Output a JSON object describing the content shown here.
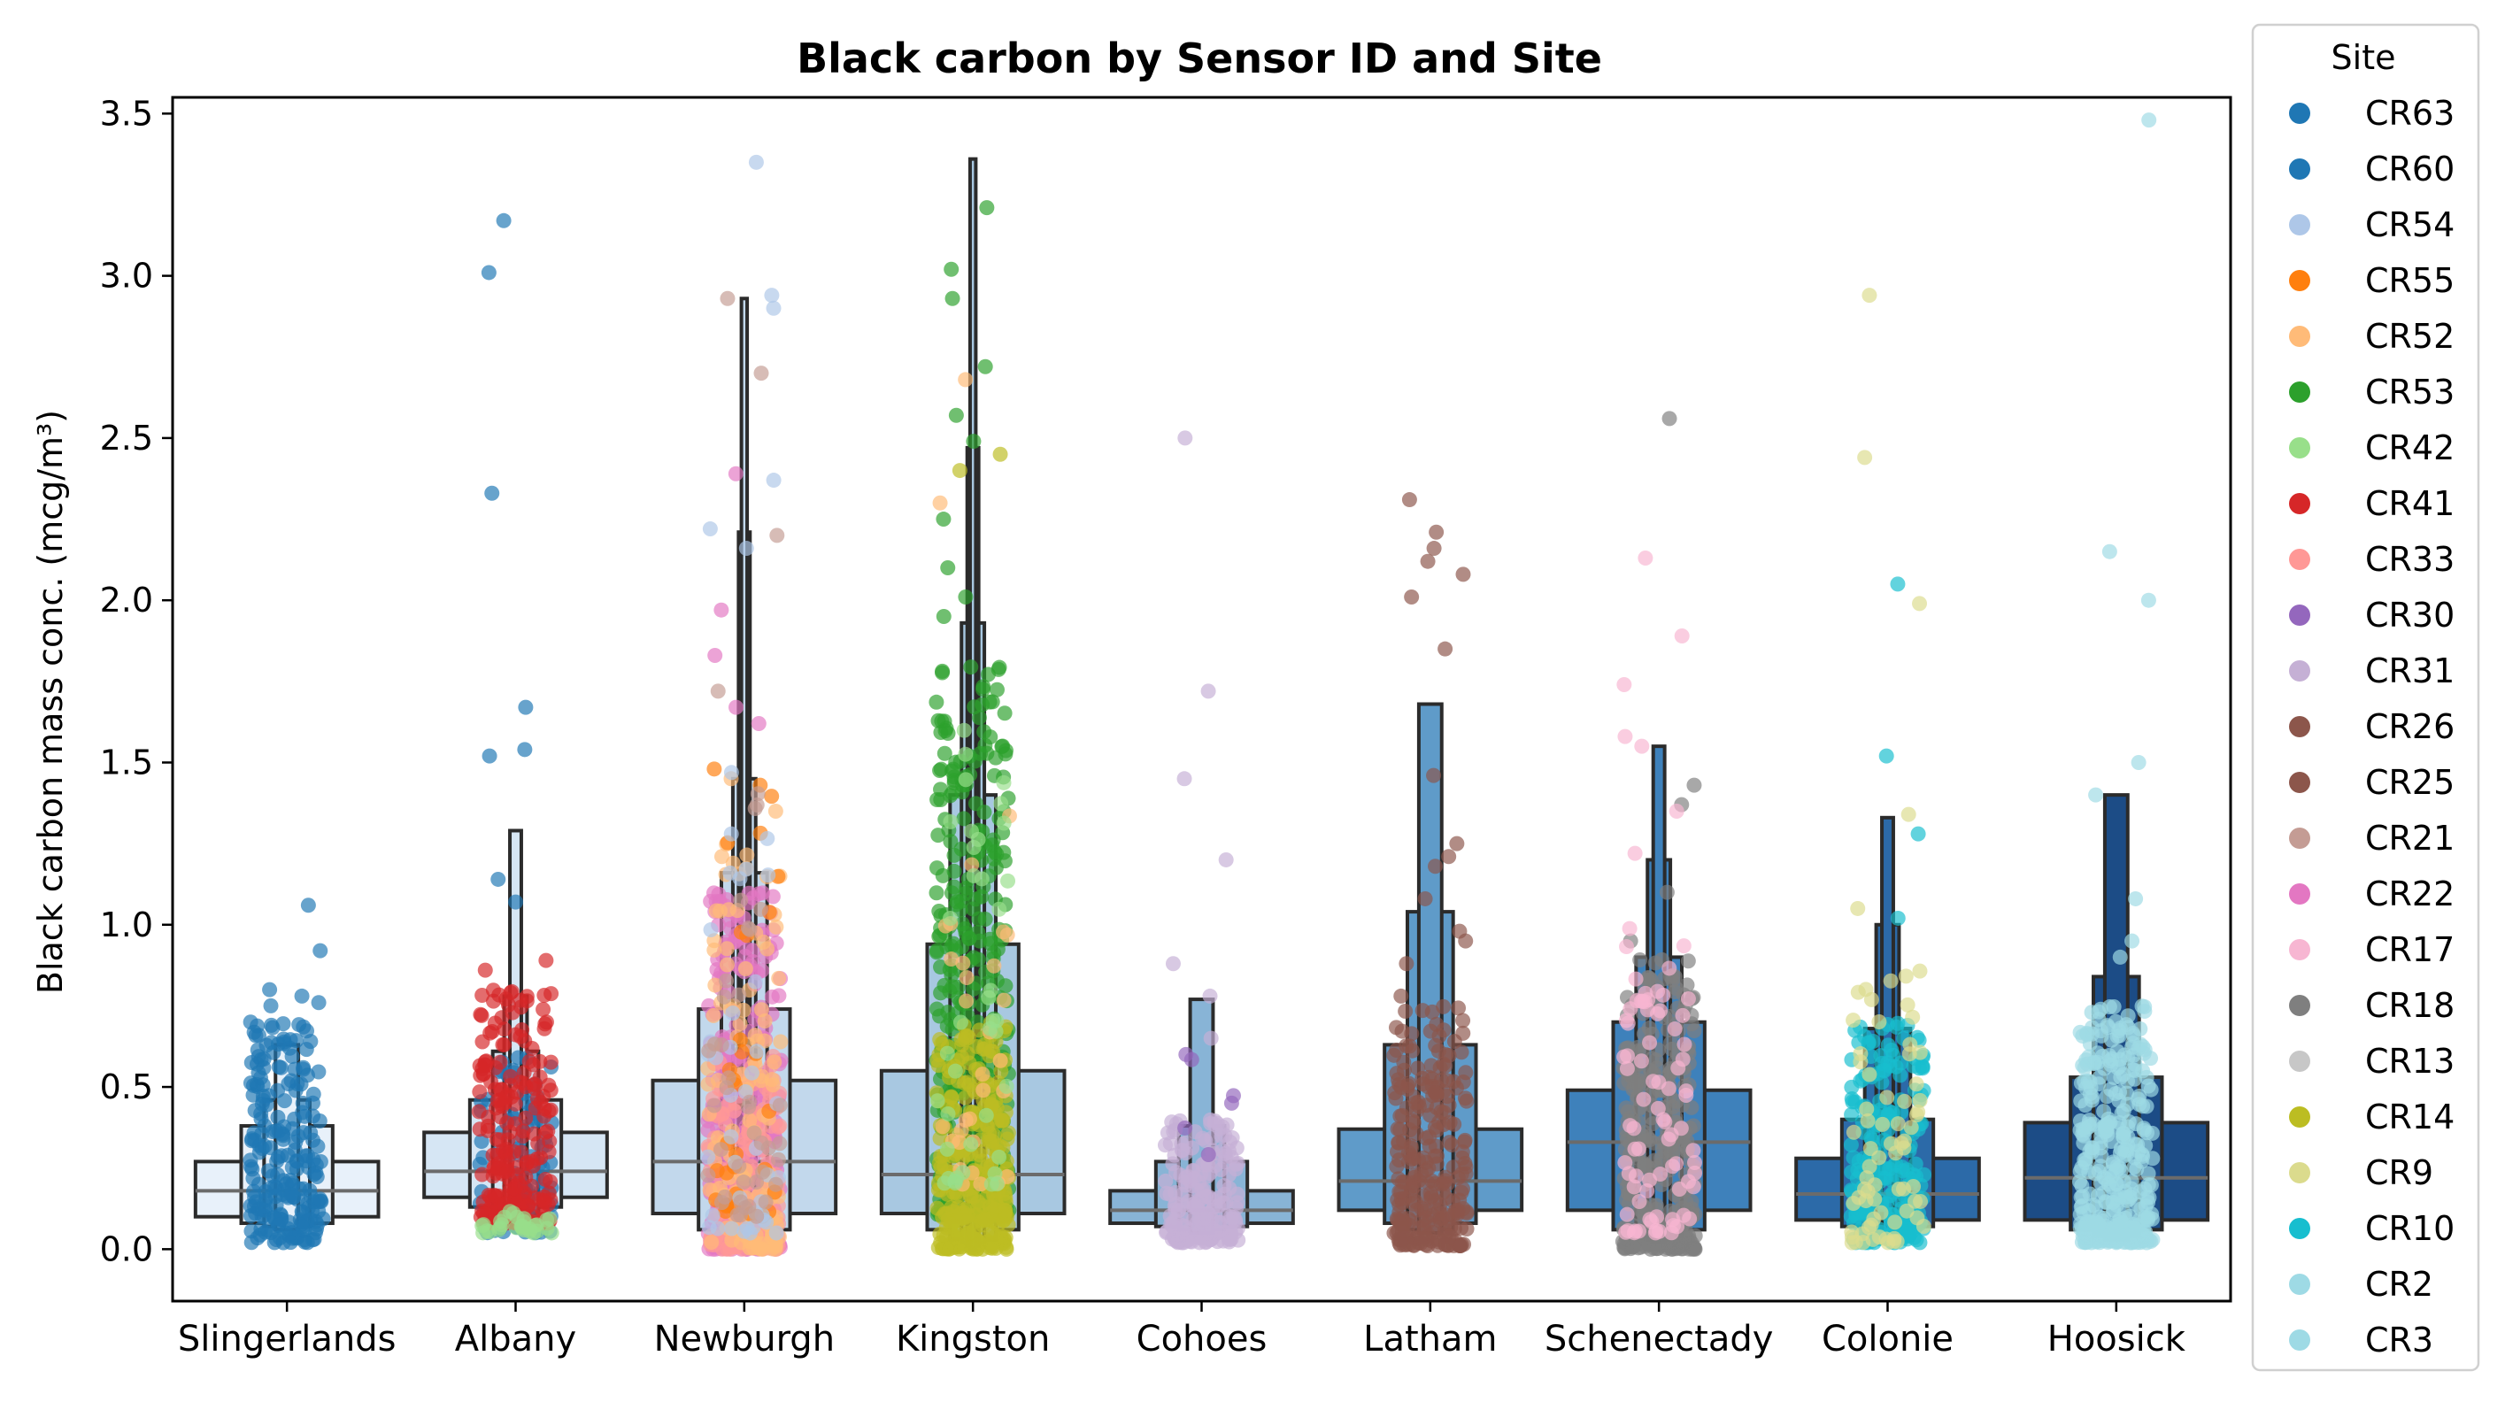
{
  "chart_data": {
    "type": "boxen-strip",
    "title": "Black carbon by Sensor ID and Site",
    "xlabel": "",
    "ylabel": "Black carbon mass conc. (mcg/m³)",
    "ylim": [
      -0.16,
      3.55
    ],
    "yticks": [
      "0.0",
      "0.5",
      "1.0",
      "1.5",
      "2.0",
      "2.5",
      "3.0",
      "3.5"
    ],
    "ytick_values": [
      0,
      0.5,
      1.0,
      1.5,
      2.0,
      2.5,
      3.0,
      3.5
    ],
    "grid": false,
    "legend": {
      "title": "Site",
      "placement": "outside-right",
      "entries": [
        {
          "label": "CR63",
          "color": "#1f77b4"
        },
        {
          "label": "CR60",
          "color": "#1f77b4"
        },
        {
          "label": "CR54",
          "color": "#aec7e8"
        },
        {
          "label": "CR55",
          "color": "#ff7f0e"
        },
        {
          "label": "CR52",
          "color": "#ffbb78"
        },
        {
          "label": "CR53",
          "color": "#2ca02c"
        },
        {
          "label": "CR42",
          "color": "#98df8a"
        },
        {
          "label": "CR41",
          "color": "#d62728"
        },
        {
          "label": "CR33",
          "color": "#ff9896"
        },
        {
          "label": "CR30",
          "color": "#9467bd"
        },
        {
          "label": "CR31",
          "color": "#c5b0d5"
        },
        {
          "label": "CR26",
          "color": "#8c564b"
        },
        {
          "label": "CR25",
          "color": "#8c564b"
        },
        {
          "label": "CR21",
          "color": "#c49c94"
        },
        {
          "label": "CR22",
          "color": "#e377c2"
        },
        {
          "label": "CR17",
          "color": "#f7b6d2"
        },
        {
          "label": "CR18",
          "color": "#7f7f7f"
        },
        {
          "label": "CR13",
          "color": "#c7c7c7"
        },
        {
          "label": "CR14",
          "color": "#bcbd22"
        },
        {
          "label": "CR9",
          "color": "#dbdb8d"
        },
        {
          "label": "CR10",
          "color": "#17becf"
        },
        {
          "label": "CR2",
          "color": "#9edae5"
        },
        {
          "label": "CR3",
          "color": "#9edae5"
        }
      ]
    },
    "categories": [
      "Slingerlands",
      "Albany",
      "Newburgh",
      "Kingston",
      "Cohoes",
      "Latham",
      "Schenectady",
      "Colonie",
      "Hoosick"
    ],
    "boxes": [
      {
        "site": "Slingerlands",
        "fill": "#e8f1fa",
        "median": 0.18,
        "levels": [
          [
            0.1,
            0.27
          ],
          [
            0.08,
            0.38
          ],
          [
            0.07,
            0.46
          ],
          [
            0.06,
            0.63
          ]
        ],
        "points": [
          {
            "color": "#1f77b4",
            "sensor": "CR63",
            "range": [
              0.02,
              0.7
            ],
            "n": 220,
            "outliers": [
              1.06,
              0.92,
              0.8,
              0.78,
              0.76,
              0.75,
              0.69
            ]
          }
        ]
      },
      {
        "site": "Albany",
        "fill": "#d6e6f4",
        "median": 0.24,
        "levels": [
          [
            0.16,
            0.36
          ],
          [
            0.13,
            0.46
          ],
          [
            0.11,
            0.61
          ],
          [
            0.09,
            0.78
          ],
          [
            0.08,
            1.29
          ]
        ],
        "points": [
          {
            "color": "#1f77b4",
            "sensor": "CR60",
            "range": [
              0.05,
              0.6
            ],
            "n": 90,
            "outliers": [
              3.17,
              3.01,
              2.33,
              1.67,
              1.54,
              1.52,
              1.14,
              1.07
            ]
          },
          {
            "color": "#d62728",
            "sensor": "CR41",
            "range": [
              0.08,
              0.8
            ],
            "n": 240,
            "outliers": [
              0.89,
              0.86
            ]
          },
          {
            "color": "#98df8a",
            "sensor": "CR42",
            "range": [
              0.05,
              0.12
            ],
            "n": 30,
            "outliers": []
          }
        ]
      },
      {
        "site": "Newburgh",
        "fill": "#c2d8ec",
        "median": 0.27,
        "levels": [
          [
            0.11,
            0.52
          ],
          [
            0.06,
            0.74
          ],
          [
            0.04,
            1.16
          ],
          [
            0.03,
            1.45
          ],
          [
            0.02,
            2.21
          ],
          [
            0.01,
            2.93
          ]
        ],
        "points": [
          {
            "color": "#e377c2",
            "sensor": "CR22",
            "range": [
              0.0,
              1.1
            ],
            "n": 320,
            "outliers": [
              2.39,
              1.97,
              1.83,
              1.67,
              1.62
            ]
          },
          {
            "color": "#ff9896",
            "sensor": "CR33",
            "range": [
              0.0,
              0.6
            ],
            "n": 180,
            "outliers": []
          },
          {
            "color": "#ffbb78",
            "sensor": "CR52",
            "range": [
              0.0,
              1.3
            ],
            "n": 120,
            "outliers": [
              1.45,
              1.35
            ]
          },
          {
            "color": "#ff7f0e",
            "sensor": "CR55",
            "range": [
              0.1,
              1.4
            ],
            "n": 30,
            "outliers": [
              1.48,
              1.43
            ]
          },
          {
            "color": "#aec7e8",
            "sensor": "CR54",
            "range": [
              0.05,
              1.5
            ],
            "n": 40,
            "outliers": [
              3.35,
              2.94,
              2.9,
              2.22,
              2.16,
              2.37
            ]
          },
          {
            "color": "#c49c94",
            "sensor": "CR21",
            "range": [
              0.1,
              1.6
            ],
            "n": 40,
            "outliers": [
              2.93,
              2.7,
              2.2,
              1.72
            ]
          }
        ]
      },
      {
        "site": "Kingston",
        "fill": "#a8c8e1",
        "median": 0.23,
        "levels": [
          [
            0.11,
            0.55
          ],
          [
            0.06,
            0.94
          ],
          [
            0.03,
            1.4
          ],
          [
            0.02,
            1.93
          ],
          [
            0.01,
            2.47
          ],
          [
            0.0,
            3.36
          ]
        ],
        "points": [
          {
            "color": "#2ca02c",
            "sensor": "CR53",
            "range": [
              0.1,
              1.8
            ],
            "n": 380,
            "outliers": [
              3.21,
              3.02,
              2.93,
              2.72,
              2.57,
              2.49,
              2.25,
              2.1,
              2.01,
              1.95
            ]
          },
          {
            "color": "#bcbd22",
            "sensor": "CR14",
            "range": [
              0.0,
              0.7
            ],
            "n": 300,
            "outliers": [
              2.45,
              2.4
            ]
          },
          {
            "color": "#ffbb78",
            "sensor": "CR52",
            "range": [
              0.2,
              1.5
            ],
            "n": 30,
            "outliers": [
              2.68,
              2.3
            ]
          },
          {
            "color": "#98df8a",
            "sensor": "CR42",
            "range": [
              0.2,
              1.6
            ],
            "n": 40,
            "outliers": []
          }
        ]
      },
      {
        "site": "Cohoes",
        "fill": "#88b4d6",
        "median": 0.12,
        "levels": [
          [
            0.08,
            0.18
          ],
          [
            0.07,
            0.27
          ],
          [
            0.06,
            0.38
          ],
          [
            0.05,
            0.77
          ]
        ],
        "points": [
          {
            "color": "#c5b0d5",
            "sensor": "CR31",
            "range": [
              0.02,
              0.4
            ],
            "n": 200,
            "outliers": [
              2.5,
              1.72,
              1.45,
              1.2,
              0.88,
              0.78,
              0.65
            ]
          },
          {
            "color": "#9467bd",
            "sensor": "CR30",
            "range": [
              0.25,
              0.6
            ],
            "n": 4,
            "outliers": [
              0.6,
              0.45
            ]
          }
        ]
      },
      {
        "site": "Latham",
        "fill": "#5f9bc9",
        "median": 0.21,
        "levels": [
          [
            0.12,
            0.37
          ],
          [
            0.08,
            0.63
          ],
          [
            0.06,
            1.04
          ],
          [
            0.05,
            1.68
          ]
        ],
        "points": [
          {
            "color": "#8c564b",
            "sensor": "CR25",
            "range": [
              0.01,
              0.75
            ],
            "n": 260,
            "outliers": [
              2.31,
              2.21,
              2.16,
              2.12,
              2.08,
              2.01,
              1.85,
              1.46,
              1.25,
              1.21,
              1.18,
              1.08,
              0.98,
              0.95,
              0.88,
              0.78
            ]
          }
        ]
      },
      {
        "site": "Schenectady",
        "fill": "#3e81bb",
        "median": 0.33,
        "levels": [
          [
            0.12,
            0.49
          ],
          [
            0.06,
            0.7
          ],
          [
            0.04,
            0.9
          ],
          [
            0.03,
            1.2
          ],
          [
            0.02,
            1.55
          ]
        ],
        "points": [
          {
            "color": "#7f7f7f",
            "sensor": "CR18",
            "range": [
              0.0,
              0.9
            ],
            "n": 340,
            "outliers": [
              2.56,
              1.43,
              1.37,
              1.1,
              0.95
            ]
          },
          {
            "color": "#f7b6d2",
            "sensor": "CR17",
            "range": [
              0.05,
              1.0
            ],
            "n": 80,
            "outliers": [
              2.13,
              1.89,
              1.74,
              1.58,
              1.55,
              1.35,
              1.22
            ]
          }
        ]
      },
      {
        "site": "Colonie",
        "fill": "#2c6aa8",
        "median": 0.17,
        "levels": [
          [
            0.09,
            0.28
          ],
          [
            0.07,
            0.4
          ],
          [
            0.05,
            0.68
          ],
          [
            0.04,
            1.0
          ],
          [
            0.03,
            1.33
          ]
        ],
        "points": [
          {
            "color": "#17becf",
            "sensor": "CR10",
            "range": [
              0.02,
              0.7
            ],
            "n": 240,
            "outliers": [
              2.05,
              1.52,
              1.28,
              1.02
            ]
          },
          {
            "color": "#dbdb8d",
            "sensor": "CR9",
            "range": [
              0.02,
              0.9
            ],
            "n": 70,
            "outliers": [
              2.94,
              2.44,
              1.99,
              1.34,
              1.05
            ]
          }
        ]
      },
      {
        "site": "Hoosick",
        "fill": "#1c4c86",
        "median": 0.22,
        "levels": [
          [
            0.09,
            0.39
          ],
          [
            0.06,
            0.53
          ],
          [
            0.04,
            0.84
          ],
          [
            0.03,
            1.4
          ]
        ],
        "points": [
          {
            "color": "#9edae5",
            "sensor": "CR2",
            "range": [
              0.02,
              0.75
            ],
            "n": 360,
            "outliers": [
              3.48,
              2.15,
              2.0,
              1.5,
              1.4,
              1.08,
              0.95,
              0.9
            ]
          }
        ]
      }
    ]
  }
}
